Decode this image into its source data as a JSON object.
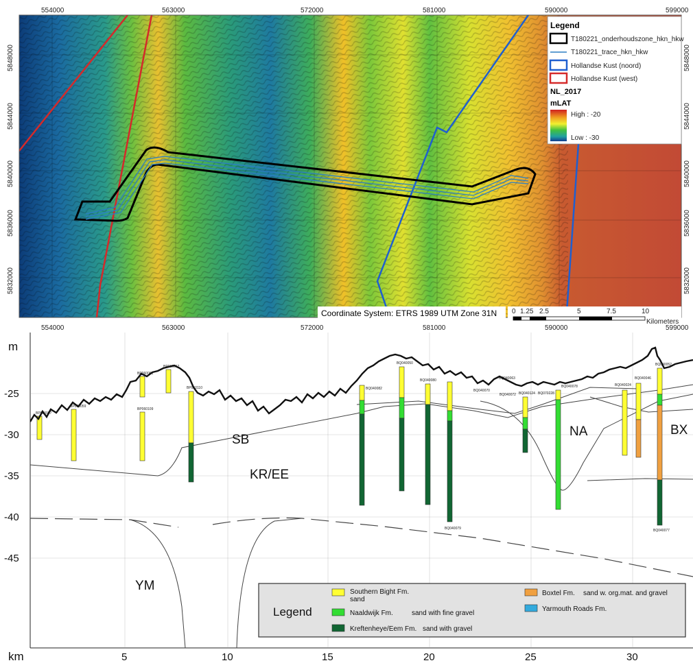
{
  "map": {
    "x_ticks": [
      "554000",
      "563000",
      "572000",
      "581000",
      "590000",
      "599000"
    ],
    "y_ticks": [
      "5848000",
      "5844000",
      "5840000",
      "5836000",
      "5832000"
    ],
    "coordinate_system": "Coordinate System: ETRS 1989 UTM Zone 31N",
    "scale_labels": [
      "0",
      "1.25",
      "2.5",
      "5",
      "7.5",
      "10"
    ],
    "scale_unit": "Kilometers",
    "legend": {
      "title": "Legend",
      "items": [
        {
          "label": "T180221_onderhoudszone_hkn_hkw",
          "color": "#000000"
        },
        {
          "label": "T180221_trace_hkn_hkw",
          "color": "#2b7fc4"
        },
        {
          "label": "Hollandse Kust (noord)",
          "color": "#1f5fcf"
        },
        {
          "label": "Hollandse Kust (west)",
          "color": "#d42a2a"
        }
      ],
      "raster_name": "NL_2017",
      "raster_unit": "mLAT",
      "high_label": "High : -20",
      "low_label": "Low : -30"
    }
  },
  "profile": {
    "y_unit": "m",
    "y_ticks": [
      "-25",
      "-30",
      "-35",
      "-40",
      "-45"
    ],
    "x_unit": "km",
    "x_ticks": [
      "5",
      "10",
      "15",
      "20",
      "25",
      "30"
    ],
    "unit_labels": [
      "SB",
      "KR/EE",
      "NA",
      "BX",
      "YM"
    ],
    "boreholes": [
      "BP060067",
      "BP060059",
      "BP060061",
      "BP060109",
      "BP060062",
      "BP060110",
      "BQ040082",
      "BQ040050",
      "BQ040080",
      "BQ040079",
      "BQ040070",
      "BQ040063",
      "BQ040072",
      "BQ040124",
      "BQ070228",
      "BQ040078",
      "BQ040024",
      "BQ040046",
      "BQ040052",
      "BQ040077"
    ],
    "legend": {
      "title": "Legend",
      "items": [
        {
          "name": "Southern Bight Fm.",
          "desc": "sand",
          "color": "#ffff33"
        },
        {
          "name": "Naaldwijk Fm.",
          "desc": "sand with fine gravel",
          "color": "#33dd33"
        },
        {
          "name": "Kreftenheye/Eem Fm.",
          "desc": "sand with gravel",
          "color": "#116633"
        },
        {
          "name": "Boxtel Fm.",
          "desc": "sand w. org.mat. and gravel",
          "color": "#f0a040"
        },
        {
          "name": "Yarmouth Roads Fm.",
          "desc": "",
          "color": "#33aadd"
        }
      ]
    }
  }
}
